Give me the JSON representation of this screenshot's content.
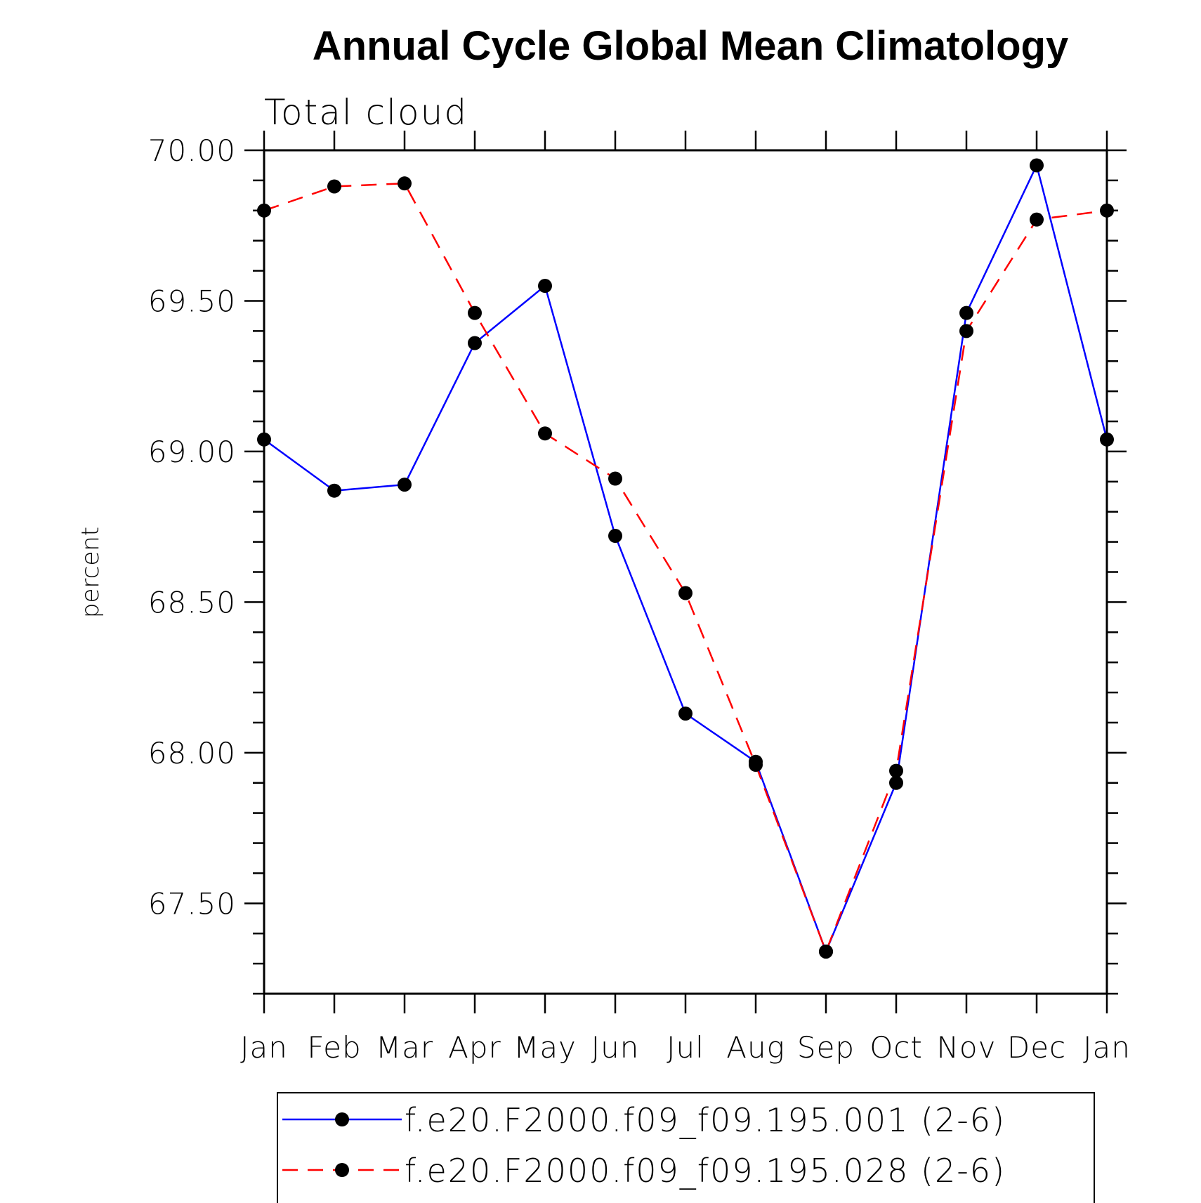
{
  "chart_data": {
    "type": "line",
    "title": "Annual Cycle Global Mean Climatology",
    "subtitle": "Total cloud",
    "xlabel": "",
    "ylabel": "percent",
    "categories": [
      "Jan",
      "Feb",
      "Mar",
      "Apr",
      "May",
      "Jun",
      "Jul",
      "Aug",
      "Sep",
      "Oct",
      "Nov",
      "Dec",
      "Jan"
    ],
    "ylim": [
      67.2,
      70.0
    ],
    "yticks": [
      "67.50",
      "68.00",
      "68.50",
      "69.00",
      "69.50",
      "70.00"
    ],
    "grid": false,
    "legend_position": "bottom",
    "series": [
      {
        "name": "f.e20.F2000.f09_f09.195.001 (2-6)",
        "color": "#0000ff",
        "line_style": "solid",
        "marker": "filled-circle",
        "values": [
          69.04,
          68.87,
          68.89,
          69.36,
          69.55,
          68.72,
          68.13,
          67.97,
          67.34,
          67.9,
          69.46,
          69.95,
          69.04
        ]
      },
      {
        "name": "f.e20.F2000.f09_f09.195.028 (2-6)",
        "color": "#ff0000",
        "line_style": "dashed",
        "marker": "filled-circle",
        "values": [
          69.8,
          69.88,
          69.89,
          69.46,
          69.06,
          68.91,
          68.53,
          67.96,
          67.34,
          67.94,
          69.4,
          69.77,
          69.8
        ]
      }
    ]
  }
}
